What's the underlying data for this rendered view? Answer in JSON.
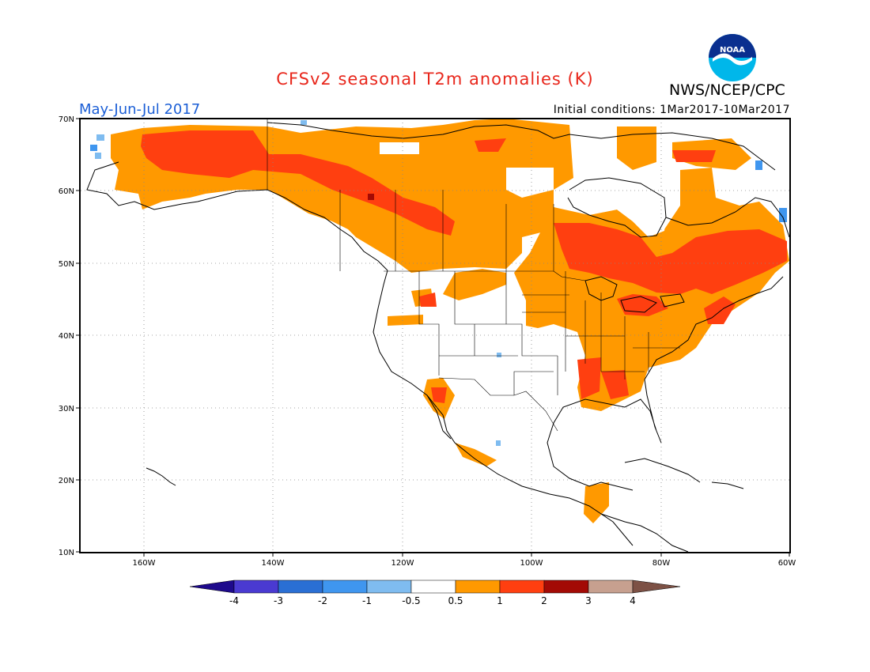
{
  "title": "CFSv2 seasonal T2m anomalies (K)",
  "period": "May-Jun-Jul 2017",
  "initial_conditions": "Initial conditions: 1Mar2017-10Mar2017",
  "agency": "NWS/NCEP/CPC",
  "logo_text": "NOAA",
  "axes": {
    "lat_labels": [
      "70N",
      "60N",
      "50N",
      "40N",
      "30N",
      "20N",
      "10N"
    ],
    "lon_labels": [
      "160W",
      "140W",
      "120W",
      "100W",
      "80W",
      "60W"
    ]
  },
  "colorbar": {
    "labels": [
      "-4",
      "-3",
      "-2",
      "-1",
      "-0.5",
      "0.5",
      "1",
      "2",
      "3",
      "4"
    ],
    "colors": [
      "#1e0a8c",
      "#4a3ad1",
      "#2a6fd4",
      "#3f96ef",
      "#7fbcf0",
      "#ffffff",
      "#ff9900",
      "#ff3f10",
      "#a30a05",
      "#c7a08f",
      "#7d5145"
    ]
  },
  "legend_colors": {
    "weak_warm": "#ff9900",
    "moderate_warm": "#ff3f10",
    "strong_warm": "#a30a05",
    "weak_cool": "#7fbcf0",
    "cool": "#3f96ef"
  }
}
